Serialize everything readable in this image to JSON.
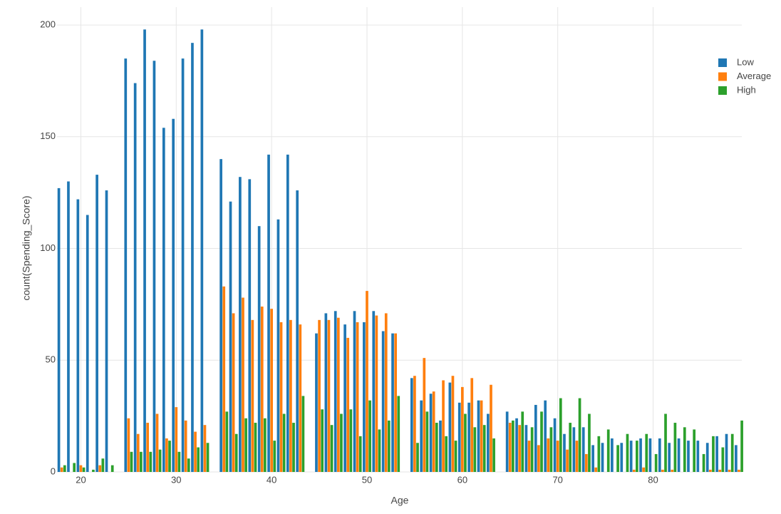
{
  "chart_data": {
    "type": "bar",
    "x_label": "Age",
    "y_label": "count(Spending_Score)",
    "x": [
      18,
      19,
      20,
      21,
      22,
      23,
      25,
      26,
      27,
      28,
      29,
      30,
      31,
      32,
      33,
      35,
      36,
      37,
      38,
      39,
      40,
      41,
      42,
      43,
      45,
      46,
      47,
      48,
      49,
      50,
      51,
      52,
      53,
      55,
      56,
      57,
      58,
      59,
      60,
      61,
      62,
      63,
      65,
      66,
      67,
      68,
      69,
      70,
      71,
      72,
      73,
      74,
      75,
      76,
      77,
      78,
      79,
      80,
      81,
      82,
      83,
      84,
      85,
      86,
      87,
      88,
      89
    ],
    "series": [
      {
        "name": "Low",
        "color": "#1f77b4",
        "values": [
          127,
          130,
          122,
          115,
          133,
          126,
          185,
          174,
          198,
          184,
          154,
          158,
          185,
          192,
          198,
          140,
          121,
          132,
          131,
          110,
          142,
          113,
          142,
          126,
          62,
          71,
          72,
          66,
          72,
          67,
          72,
          63,
          62,
          42,
          32,
          35,
          23,
          40,
          31,
          31,
          32,
          26,
          27,
          24,
          21,
          30,
          32,
          24,
          17,
          20,
          20,
          12,
          13,
          15,
          13,
          14,
          15,
          15,
          15,
          13,
          15,
          14,
          14,
          13,
          16,
          17,
          12
        ]
      },
      {
        "name": "Average",
        "color": "#ff7f0e",
        "values": [
          2,
          0,
          3,
          0,
          3,
          0,
          24,
          17,
          22,
          26,
          15,
          29,
          23,
          18,
          21,
          83,
          71,
          78,
          68,
          74,
          73,
          67,
          68,
          66,
          68,
          68,
          69,
          60,
          67,
          81,
          70,
          71,
          62,
          43,
          51,
          36,
          41,
          43,
          38,
          42,
          32,
          39,
          22,
          21,
          14,
          12,
          15,
          14,
          10,
          14,
          8,
          2,
          0,
          0,
          0,
          1,
          2,
          0,
          1,
          1,
          0,
          0,
          0,
          1,
          1,
          1,
          1
        ]
      },
      {
        "name": "High",
        "color": "#2ca02c",
        "values": [
          3,
          4,
          2,
          1,
          6,
          3,
          9,
          9,
          9,
          10,
          14,
          9,
          6,
          11,
          13,
          27,
          17,
          24,
          22,
          24,
          14,
          26,
          22,
          34,
          28,
          21,
          26,
          28,
          16,
          32,
          19,
          23,
          34,
          13,
          27,
          22,
          16,
          14,
          26,
          20,
          21,
          15,
          23,
          27,
          20,
          27,
          20,
          33,
          22,
          33,
          26,
          16,
          19,
          12,
          17,
          14,
          17,
          8,
          26,
          22,
          20,
          19,
          8,
          16,
          11,
          17,
          23
        ]
      }
    ],
    "xlim": [
      17.5,
      89.3
    ],
    "xticks": [
      20,
      30,
      40,
      50,
      60,
      70,
      80
    ],
    "ylim": [
      0,
      208
    ],
    "yticks": [
      0,
      50,
      100,
      150,
      200
    ],
    "grid": true,
    "legend": "top-right"
  }
}
